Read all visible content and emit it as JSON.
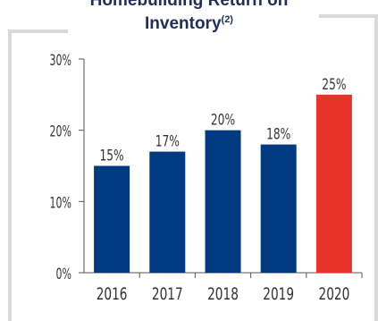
{
  "chart_data": {
    "type": "bar",
    "title": "Homebuilding Return on Inventory",
    "title_line1": "Homebuilding Return on",
    "title_line2": "Inventory",
    "title_footnote": "(2)",
    "categories": [
      "2016",
      "2017",
      "2018",
      "2019",
      "2020"
    ],
    "values": [
      15,
      17,
      20,
      18,
      25
    ],
    "data_labels": [
      "15%",
      "17%",
      "20%",
      "18%",
      "25%"
    ],
    "y_ticks": [
      "0%",
      "10%",
      "20%",
      "30%"
    ],
    "y_tick_values": [
      0,
      10,
      20,
      30
    ],
    "ylim": [
      0,
      30
    ],
    "xlabel": "",
    "ylabel": "",
    "grid": false,
    "bar_colors": [
      "#003a80",
      "#003a80",
      "#003a80",
      "#003a80",
      "#e8332a"
    ]
  },
  "colors": {
    "title": "#1f2d58",
    "frame": "#d9d9d9",
    "axis": "#555555",
    "label": "#333333"
  }
}
